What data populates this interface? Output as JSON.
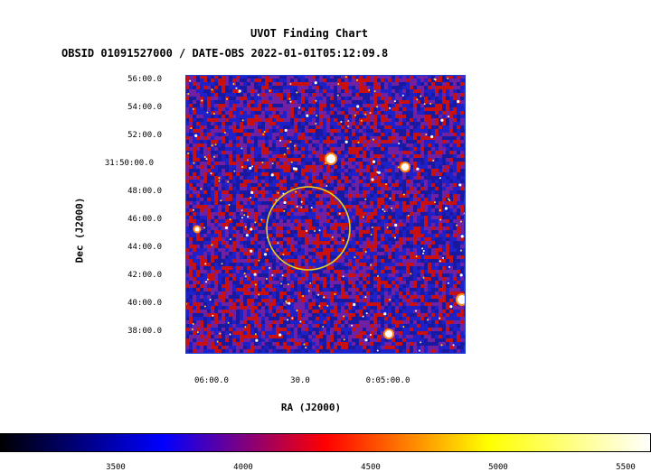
{
  "title": "UVOT Finding Chart",
  "subtitle": "OBSID 01091527000 / DATE-OBS 2022-01-01T05:12:09.8",
  "axes": {
    "xlabel": "RA (J2000)",
    "ylabel": "Dec (J2000)",
    "dec_ticks": [
      "56:00.0",
      "54:00.0",
      "52:00.0",
      "31:50:00.0",
      "48:00.0",
      "46:00.0",
      "44:00.0",
      "42:00.0",
      "40:00.0",
      "38:00.0"
    ],
    "ra_ticks": [
      "06:00.0",
      "30.0",
      "0:05:00.0"
    ]
  },
  "image": {
    "colormap": "bb",
    "background_colors": [
      "#2020c8",
      "#7020a0",
      "#c81010",
      "#1818a0"
    ],
    "frame_color": "#1f3fd9",
    "target_circle_color": "#e8d21c"
  },
  "colorbar": {
    "tick_labels": [
      "3500",
      "4000",
      "4500",
      "5000",
      "5500"
    ],
    "stops": [
      "#000000",
      "#0000ff",
      "#ff0000",
      "#ffff00",
      "#ffffff"
    ]
  }
}
